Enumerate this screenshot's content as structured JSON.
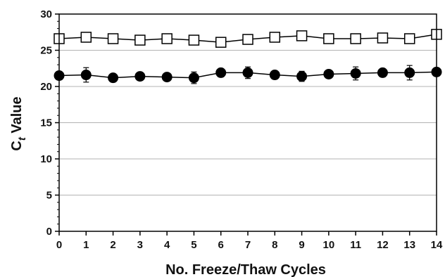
{
  "chart_data": {
    "type": "line",
    "xlabel": "No. Freeze/Thaw Cycles",
    "ylabel_main": "C",
    "ylabel_sub": "t",
    "ylabel_rest": " Value",
    "xlim": [
      0,
      14
    ],
    "ylim": [
      0,
      30
    ],
    "x_ticks": [
      0,
      1,
      2,
      3,
      4,
      5,
      6,
      7,
      8,
      9,
      10,
      11,
      12,
      13,
      14
    ],
    "y_ticks": [
      0,
      5,
      10,
      15,
      20,
      25,
      30
    ],
    "grid": true,
    "x": [
      0,
      1,
      2,
      3,
      4,
      5,
      6,
      7,
      8,
      9,
      10,
      11,
      12,
      13,
      14
    ],
    "series": [
      {
        "marker": "open-square",
        "color": "#000000",
        "values": [
          26.6,
          26.8,
          26.6,
          26.4,
          26.6,
          26.4,
          26.1,
          26.5,
          26.8,
          27.0,
          26.6,
          26.6,
          26.7,
          26.6,
          27.2
        ],
        "errors": [
          0.3,
          0.3,
          0.3,
          0.4,
          0.3,
          0.4,
          0.4,
          0.4,
          0.3,
          0.4,
          0.3,
          0.4,
          0.3,
          0.3,
          0.4
        ]
      },
      {
        "marker": "filled-circle",
        "color": "#000000",
        "values": [
          21.5,
          21.6,
          21.2,
          21.4,
          21.3,
          21.2,
          21.9,
          21.9,
          21.6,
          21.4,
          21.7,
          21.8,
          21.9,
          21.9,
          22.0
        ],
        "errors": [
          0.3,
          1.0,
          0.3,
          0.3,
          0.3,
          0.8,
          0.3,
          0.8,
          0.3,
          0.7,
          0.3,
          0.9,
          0.3,
          1.0,
          0.3
        ]
      }
    ]
  }
}
